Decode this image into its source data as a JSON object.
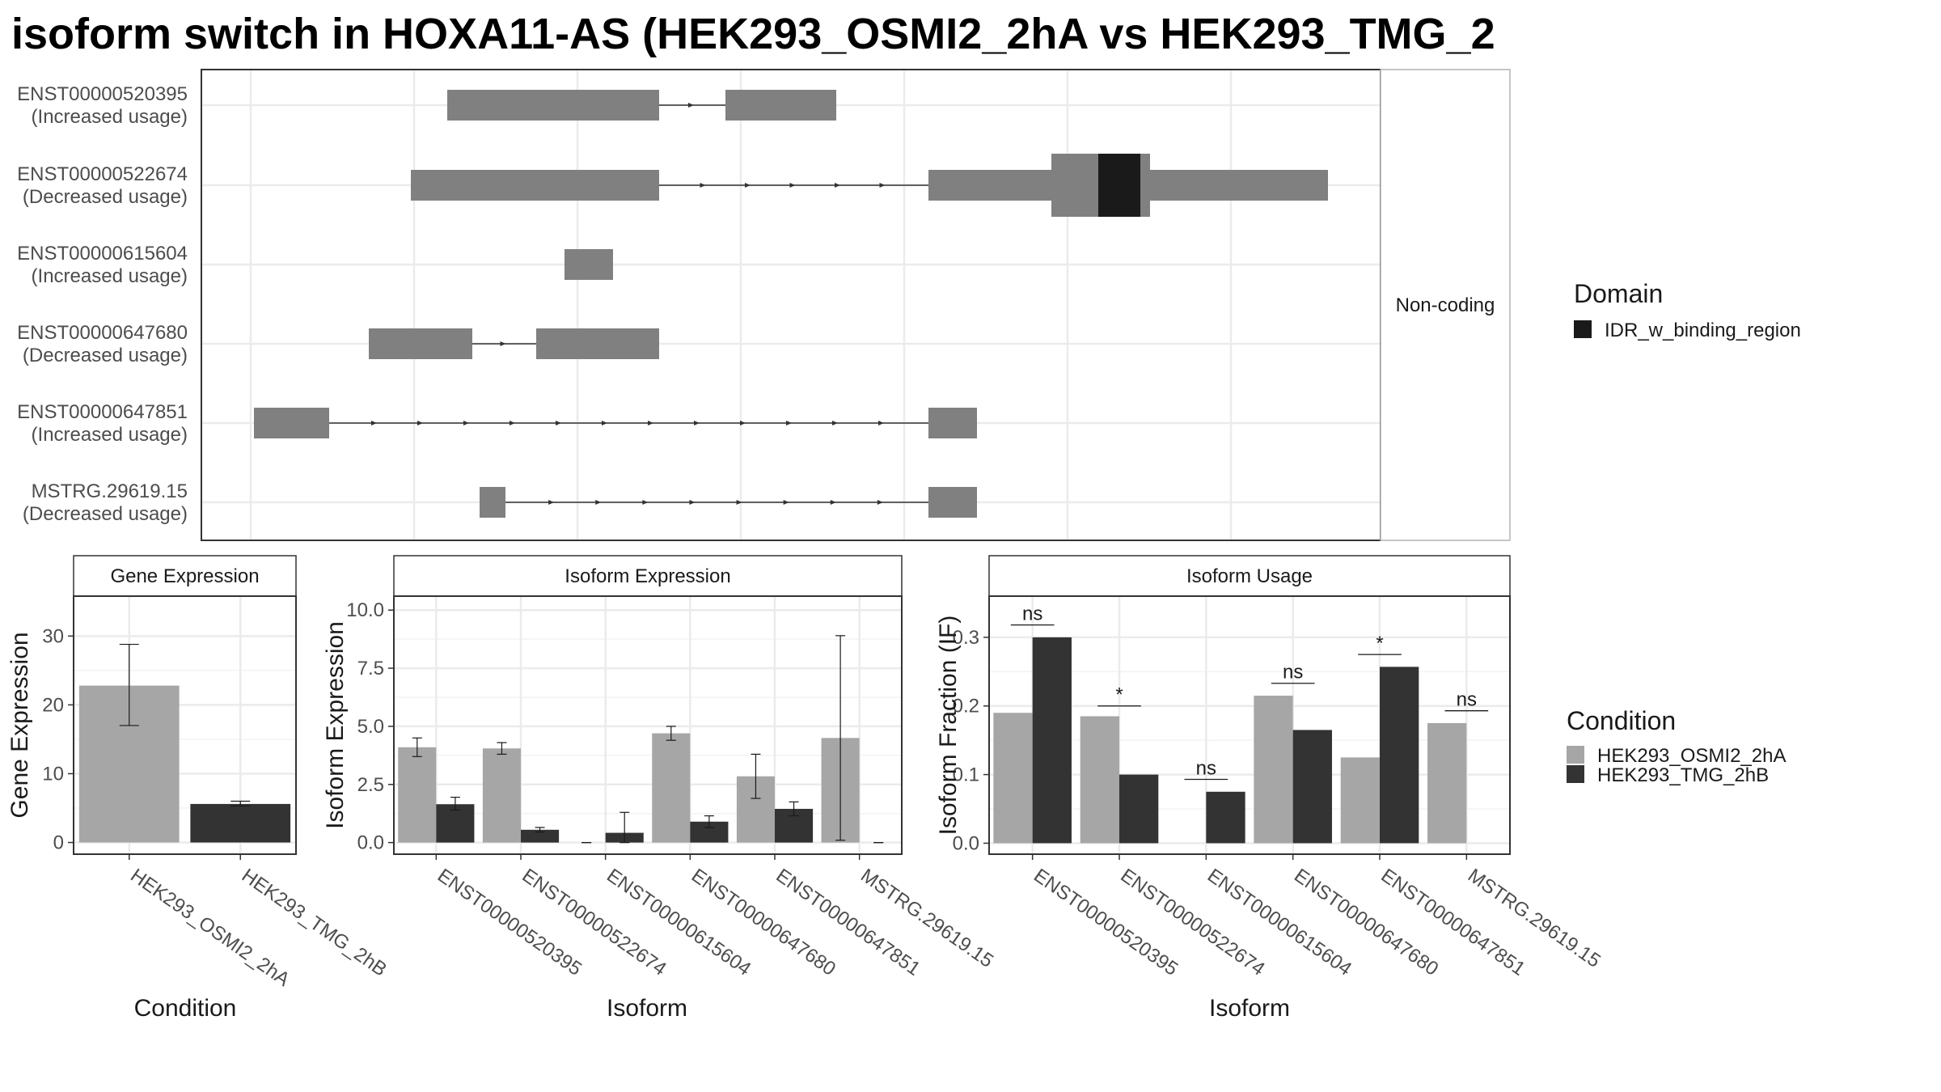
{
  "title": "isoform switch in HOXA11-AS (HEK293_OSMI2_2hA vs HEK293_TMG_2",
  "colors": {
    "exon": "#808080",
    "domain": "#1a1a1a",
    "condition_a": "#a6a6a6",
    "condition_b": "#333333",
    "grid": "#ebebeb",
    "panel_border": "#333333"
  },
  "structure_panel": {
    "strip_label": "Non-coding",
    "isoforms": [
      {
        "id": "ENST00000520395",
        "status": "(Increased usage)"
      },
      {
        "id": "ENST00000522674",
        "status": "(Decreased usage)"
      },
      {
        "id": "ENST00000615604",
        "status": "(Increased usage)"
      },
      {
        "id": "ENST00000647680",
        "status": "(Decreased usage)"
      },
      {
        "id": "ENST00000647851",
        "status": "(Increased usage)"
      },
      {
        "id": "MSTRG.29619.15",
        "status": "(Decreased usage)"
      }
    ]
  },
  "domain_legend": {
    "title": "Domain",
    "entries": [
      {
        "label": "IDR_w_binding_region",
        "color": "#1a1a1a"
      }
    ]
  },
  "condition_legend": {
    "title": "Condition",
    "entries": [
      {
        "label": "HEK293_OSMI2_2hA",
        "color": "#a6a6a6"
      },
      {
        "label": "HEK293_TMG_2hB",
        "color": "#333333"
      }
    ]
  },
  "chart_data": [
    {
      "type": "bar",
      "title": "Gene Expression",
      "xlabel": "Condition",
      "ylabel": "Gene Expression",
      "categories": [
        "HEK293_OSMI2_2hA",
        "HEK293_TMG_2hB"
      ],
      "values": [
        22.8,
        5.6
      ],
      "error_low": [
        17.0,
        5.3
      ],
      "error_high": [
        28.8,
        6.0
      ],
      "colors": [
        "#a6a6a6",
        "#333333"
      ],
      "yticks": [
        0,
        10,
        20,
        30
      ],
      "ylim": [
        -1.7,
        35.8
      ]
    },
    {
      "type": "bar",
      "title": "Isoform Expression",
      "xlabel": "Isoform",
      "ylabel": "Isoform Expression",
      "categories": [
        "ENST00000520395",
        "ENST00000522674",
        "ENST00000615604",
        "ENST00000647680",
        "ENST00000647851",
        "MSTRG.29619.15"
      ],
      "series": [
        {
          "name": "HEK293_OSMI2_2hA",
          "color": "#a6a6a6",
          "values": [
            4.1,
            4.05,
            0.0,
            4.7,
            2.85,
            4.5
          ],
          "error_low": [
            3.7,
            3.8,
            0.0,
            4.4,
            1.9,
            0.1
          ],
          "error_high": [
            4.5,
            4.3,
            0.0,
            5.0,
            3.8,
            8.9
          ]
        },
        {
          "name": "HEK293_TMG_2hB",
          "color": "#333333",
          "values": [
            1.65,
            0.55,
            0.42,
            0.9,
            1.45,
            0.0
          ],
          "error_low": [
            1.4,
            0.45,
            0.0,
            0.65,
            1.15,
            0.0
          ],
          "error_high": [
            1.95,
            0.65,
            1.3,
            1.15,
            1.75,
            0.0
          ]
        }
      ],
      "yticks": [
        0.0,
        2.5,
        5.0,
        7.5,
        10.0
      ],
      "ytick_labels": [
        "0.0",
        "2.5",
        "5.0",
        "7.5",
        "10.0"
      ],
      "ylim": [
        -0.5,
        10.6
      ]
    },
    {
      "type": "bar",
      "title": "Isoform Usage",
      "xlabel": "Isoform",
      "ylabel": "Isoform Fraction (IF)",
      "categories": [
        "ENST00000520395",
        "ENST00000522674",
        "ENST00000615604",
        "ENST00000647680",
        "ENST00000647851",
        "MSTRG.29619.15"
      ],
      "series": [
        {
          "name": "HEK293_OSMI2_2hA",
          "color": "#a6a6a6",
          "values": [
            0.19,
            0.185,
            0.0,
            0.215,
            0.125,
            0.175
          ]
        },
        {
          "name": "HEK293_TMG_2hB",
          "color": "#333333",
          "values": [
            0.3,
            0.1,
            0.075,
            0.165,
            0.257,
            0.0
          ]
        }
      ],
      "significance": [
        "ns",
        "*",
        "ns",
        "ns",
        "*",
        "ns"
      ],
      "significance_y": [
        0.318,
        0.2,
        0.093,
        0.233,
        0.275,
        0.193
      ],
      "yticks": [
        0.0,
        0.1,
        0.2,
        0.3
      ],
      "ytick_labels": [
        "0.0",
        "0.1",
        "0.2",
        "0.3"
      ],
      "ylim": [
        -0.016,
        0.36
      ]
    }
  ]
}
